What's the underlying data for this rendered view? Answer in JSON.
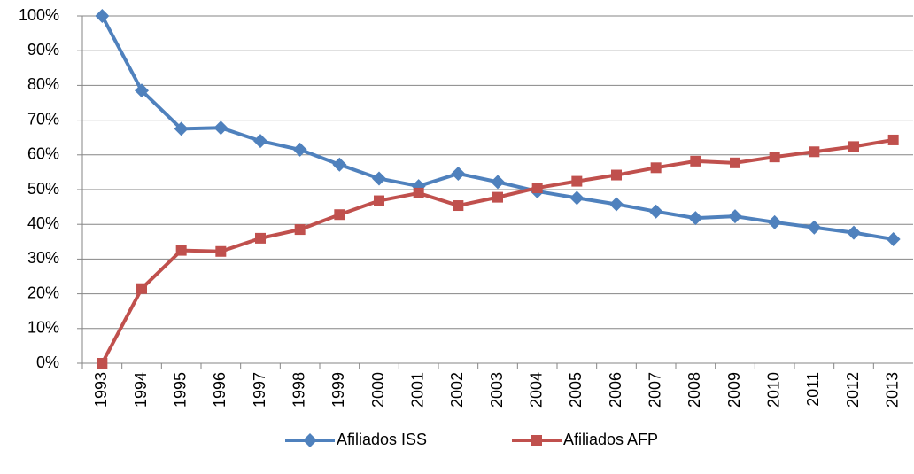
{
  "chart_data": {
    "type": "line",
    "categories": [
      "1993",
      "1994",
      "1995",
      "1996",
      "1997",
      "1998",
      "1999",
      "2000",
      "2001",
      "2002",
      "2003",
      "2004",
      "2005",
      "2006",
      "2007",
      "2008",
      "2009",
      "2010",
      "2011",
      "2012",
      "2013"
    ],
    "series": [
      {
        "name": "Afiliados ISS",
        "color": "#4f81bd",
        "marker": "diamond",
        "values": [
          100,
          78.5,
          67.5,
          67.8,
          64,
          61.5,
          57.2,
          53.2,
          51,
          54.6,
          52.2,
          49.5,
          47.6,
          45.8,
          43.7,
          41.8,
          42.3,
          40.6,
          39.1,
          37.6,
          35.7
        ]
      },
      {
        "name": "Afiliados AFP",
        "color": "#c0504d",
        "marker": "square",
        "values": [
          0,
          21.5,
          32.5,
          32.2,
          36,
          38.5,
          42.8,
          46.8,
          49,
          45.4,
          47.8,
          50.5,
          52.4,
          54.2,
          56.3,
          58.2,
          57.7,
          59.4,
          60.9,
          62.4,
          64.3
        ]
      }
    ],
    "ylim": [
      0,
      100
    ],
    "yticks": [
      {
        "value": 0,
        "label": "0%"
      },
      {
        "value": 10,
        "label": "10%"
      },
      {
        "value": 20,
        "label": "20%"
      },
      {
        "value": 30,
        "label": "30%"
      },
      {
        "value": 40,
        "label": "40%"
      },
      {
        "value": 50,
        "label": "50%"
      },
      {
        "value": 60,
        "label": "60%"
      },
      {
        "value": 70,
        "label": "70%"
      },
      {
        "value": 80,
        "label": "80%"
      },
      {
        "value": 90,
        "label": "90%"
      },
      {
        "value": 100,
        "label": "100%"
      }
    ],
    "grid": true,
    "legend": "bottom"
  }
}
